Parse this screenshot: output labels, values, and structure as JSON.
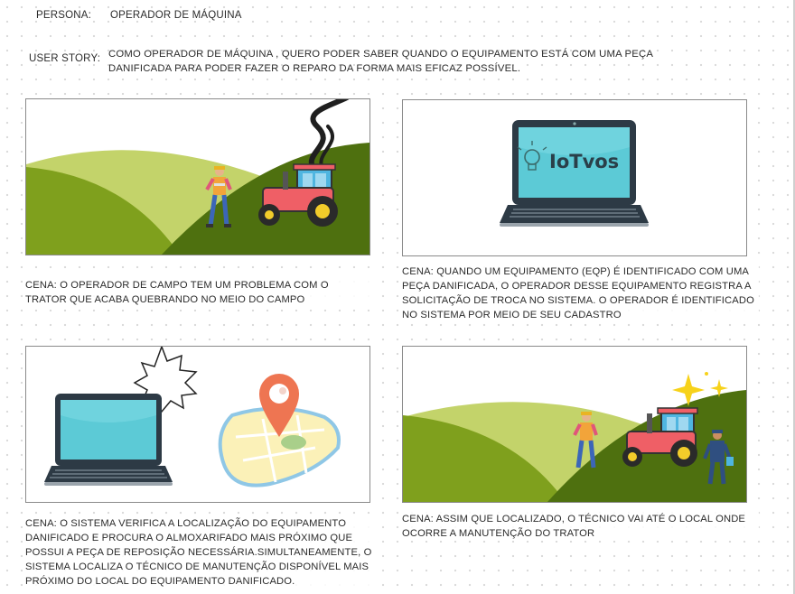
{
  "persona": {
    "label": "PERSONA:",
    "value": "OPERADOR DE MÁQUINA"
  },
  "user_story": {
    "label": "USER STORY:",
    "line1": "COMO OPERADOR DE MÁQUINA , QUERO PODER SABER QUANDO O EQUIPAMENTO ESTÁ COM UMA PEÇA",
    "line2": "DANIFICADA PARA PODER FAZER O REPARO DA FORMA MAIS EFICAZ POSSÍVEL."
  },
  "scenes": [
    {
      "caption": "CENA: O OPERADOR DE CAMPO TEM UM PROBLEMA COM O\nTRATOR QUE ACABA QUEBRANDO NO MEIO DO CAMPO"
    },
    {
      "caption": "CENA: QUANDO UM EQUIPAMENTO (EQP) É IDENTIFICADO COM UMA\nPEÇA DANIFICADA, O OPERADOR DESSE EQUIPAMENTO REGISTRA A\nSOLICITAÇÃO DE TROCA NO SISTEMA. O OPERADOR É IDENTIFICADO\nNO SISTEMA POR MEIO DE SEU CADASTRO",
      "screen_logo": "IoTvos"
    },
    {
      "caption": "CENA: O SISTEMA VERIFICA A LOCALIZAÇÃO DO EQUIPAMENTO\nDANIFICADO E PROCURA O ALMOXARIFADO MAIS PRÓXIMO QUE\nPOSSUI A PEÇA DE REPOSIÇÃO NECESSÁRIA.SIMULTANEAMENTE, O\nSISTEMA LOCALIZA O TÉCNICO DE MANUTENÇÃO DISPONÍVEL MAIS\nPRÓXIMO DO LOCAL DO EQUIPAMENTO DANIFICADO."
    },
    {
      "caption": "CENA: ASSIM QUE LOCALIZADO, O TÉCNICO VAI ATÉ O LOCAL ONDE\nOCORRE A MANUTENÇÃO DO TRATOR"
    }
  ],
  "colors": {
    "hill_light": "#c3d36a",
    "hill_mid": "#7fa01d",
    "hill_dark": "#4e700f",
    "tractor_red": "#ef5f66",
    "tractor_blue": "#4fb5e0",
    "screen_teal": "#5ccad6",
    "laptop_dark": "#2d3a45",
    "pin_orange": "#ee7552"
  }
}
